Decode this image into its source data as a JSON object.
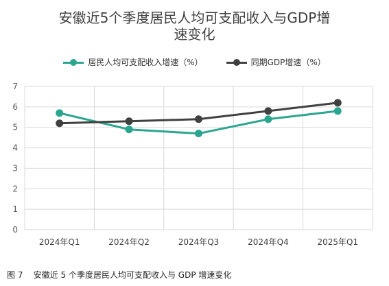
{
  "caption": "图 7    安徽近 5 个季度居民人均可支配收入与 GDP 增速变化",
  "colors": {
    "income": "#2aa58f",
    "gdp": "#404040",
    "grid": "#d9d9d9"
  },
  "chart_data": {
    "type": "line",
    "title": "安徽近5个季度居民人均可支配收入与GDP增速变化",
    "title_lines": [
      "安徽近5个季度居民人均可支配收入与GDP增",
      "速变化"
    ],
    "categories": [
      "2024年Q1",
      "2024年Q2",
      "2024年Q3",
      "2024年Q4",
      "2025年Q1"
    ],
    "series": [
      {
        "name": "居民人均可支配收入增速（%）",
        "values": [
          5.7,
          4.9,
          4.7,
          5.4,
          5.8
        ]
      },
      {
        "name": "同期GDP增速（%）",
        "values": [
          5.2,
          5.3,
          5.4,
          5.8,
          6.2
        ]
      }
    ],
    "ylim": [
      0,
      7
    ],
    "yticks": [
      "0",
      "1",
      "2",
      "3",
      "4",
      "5",
      "6",
      "7"
    ],
    "grid": true,
    "legend_position": "top-center"
  }
}
